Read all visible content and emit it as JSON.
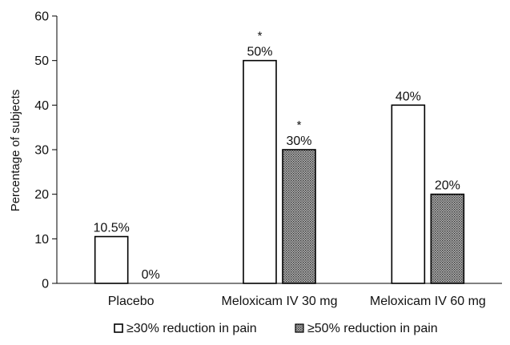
{
  "chart_data": {
    "type": "bar",
    "categories": [
      "Placebo",
      "Meloxicam IV 30 mg",
      "Meloxicam IV 60 mg"
    ],
    "series": [
      {
        "name": "≥30% reduction in pain",
        "values": [
          10.5,
          50,
          40
        ],
        "labels": [
          "10.5%",
          "50%",
          "40%"
        ],
        "significance": [
          "",
          "*",
          ""
        ],
        "fill": "#ffffff"
      },
      {
        "name": "≥50% reduction in pain",
        "values": [
          0,
          30,
          20
        ],
        "labels": [
          "0%",
          "30%",
          "20%"
        ],
        "significance": [
          "",
          "*",
          ""
        ],
        "fill": "#8c8c8c"
      }
    ],
    "ylabel": "Percentage of subjects",
    "xlabel": "",
    "ylim": [
      0,
      60
    ],
    "yticks": [
      "0",
      "10",
      "20",
      "30",
      "40",
      "50",
      "60"
    ],
    "grid": false,
    "legend": "bottom"
  }
}
